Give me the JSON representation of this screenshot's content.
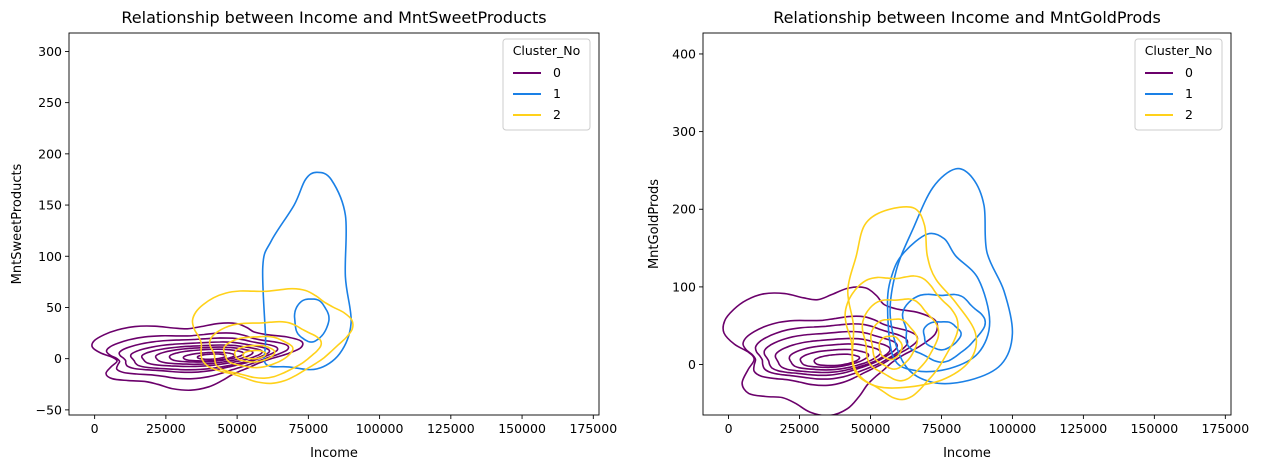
{
  "colors": {
    "cluster_0": "#6b006b",
    "cluster_1": "#1a80e6",
    "cluster_2": "#ffd11a"
  },
  "chart_data": [
    {
      "type": "kde-contour",
      "title": "Relationship between Income and MntSweetProducts",
      "xlabel": "Income",
      "ylabel": "MntSweetProducts",
      "xlim": [
        -9000,
        177000
      ],
      "ylim": [
        -55,
        318
      ],
      "xticks": [
        0,
        25000,
        50000,
        75000,
        100000,
        125000,
        150000,
        175000
      ],
      "yticks": [
        -50,
        0,
        50,
        100,
        150,
        200,
        250,
        300
      ],
      "legend": {
        "title": "Cluster_No",
        "placement": "upper-right",
        "entries": [
          "0",
          "1",
          "2"
        ]
      },
      "series": [
        {
          "name": "0",
          "color": "#6b006b",
          "contours": [
            {
              "cx": 33000,
              "cy": 5,
              "rx": 33000,
              "ry": 30,
              "rot": 0.05,
              "wob": 0.25
            },
            {
              "cx": 34000,
              "cy": 4,
              "rx": 30000,
              "ry": 21,
              "rot": 0.05,
              "wob": 0.16
            },
            {
              "cx": 35000,
              "cy": 4,
              "rx": 27000,
              "ry": 16,
              "rot": 0.05,
              "wob": 0.1
            },
            {
              "cx": 36000,
              "cy": 3,
              "rx": 24000,
              "ry": 13,
              "rot": 0.05,
              "wob": 0.07
            },
            {
              "cx": 37000,
              "cy": 3,
              "rx": 21000,
              "ry": 10,
              "rot": 0.05,
              "wob": 0.05
            },
            {
              "cx": 38000,
              "cy": 3,
              "rx": 17000,
              "ry": 8,
              "rot": 0.05,
              "wob": 0.04
            },
            {
              "cx": 39000,
              "cy": 3,
              "rx": 13000,
              "ry": 6,
              "rot": 0.05,
              "wob": 0.03
            },
            {
              "cx": 40000,
              "cy": 2,
              "rx": 9000,
              "ry": 4,
              "rot": 0.05,
              "wob": 0.02
            },
            {
              "cx": 41000,
              "cy": 2,
              "rx": 5000,
              "ry": 2.5,
              "rot": 0.05,
              "wob": 0.02
            }
          ]
        },
        {
          "name": "1",
          "color": "#1a80e6",
          "contours": [
            {
              "points": [
                [
                  60000,
                  -5
                ],
                [
                  60000,
                  20
                ],
                [
                  59000,
                  90
                ],
                [
                  62000,
                  115
                ],
                [
                  70000,
                  150
                ],
                [
                  74000,
                  175
                ],
                [
                  78000,
                  182
                ],
                [
                  83000,
                  175
                ],
                [
                  88000,
                  140
                ],
                [
                  88000,
                  80
                ],
                [
                  90000,
                  35
                ],
                [
                  86000,
                  5
                ],
                [
                  78000,
                  -10
                ],
                [
                  68000,
                  -8
                ]
              ]
            },
            {
              "cx": 76000,
              "cy": 38,
              "rx": 6000,
              "ry": 21,
              "rot": 0,
              "wob": 0.05
            }
          ]
        },
        {
          "name": "2",
          "color": "#ffd11a",
          "contours": [
            {
              "cx": 61000,
              "cy": 25,
              "rx": 27000,
              "ry": 45,
              "rot": 0.05,
              "wob": 0.12
            },
            {
              "cx": 59000,
              "cy": 10,
              "rx": 19000,
              "ry": 27,
              "rot": 0.05,
              "wob": 0.1
            },
            {
              "cx": 57000,
              "cy": 7,
              "rx": 12000,
              "ry": 15,
              "rot": 0.05,
              "wob": 0.06
            },
            {
              "cx": 56000,
              "cy": 5,
              "rx": 7000,
              "ry": 8,
              "rot": 0.05,
              "wob": 0.04
            },
            {
              "cx": 56000,
              "cy": 4,
              "rx": 4000,
              "ry": 4,
              "rot": 0.05,
              "wob": 0.03
            }
          ]
        }
      ]
    },
    {
      "type": "kde-contour",
      "title": "Relationship between Income and MntGoldProds",
      "xlabel": "Income",
      "ylabel": "MntGoldProds",
      "xlim": [
        -9000,
        177000
      ],
      "ylim": [
        -65,
        427
      ],
      "xticks": [
        0,
        25000,
        50000,
        75000,
        100000,
        125000,
        150000,
        175000
      ],
      "yticks": [
        0,
        100,
        200,
        300,
        400
      ],
      "legend": {
        "title": "Cluster_No",
        "placement": "upper-right",
        "entries": [
          "0",
          "1",
          "2"
        ]
      },
      "series": [
        {
          "name": "0",
          "color": "#6b006b",
          "contours": [
            {
              "cx": 33000,
              "cy": 25,
              "rx": 33000,
              "ry": 75,
              "rot": 0.1,
              "wob": 0.28
            },
            {
              "cx": 34000,
              "cy": 20,
              "rx": 29000,
              "ry": 42,
              "rot": 0.08,
              "wob": 0.15
            },
            {
              "cx": 35000,
              "cy": 18,
              "rx": 26000,
              "ry": 34,
              "rot": 0.08,
              "wob": 0.1
            },
            {
              "cx": 35000,
              "cy": 15,
              "rx": 23000,
              "ry": 27,
              "rot": 0.08,
              "wob": 0.08
            },
            {
              "cx": 36000,
              "cy": 12,
              "rx": 20000,
              "ry": 21,
              "rot": 0.08,
              "wob": 0.06
            },
            {
              "cx": 37000,
              "cy": 10,
              "rx": 16000,
              "ry": 16,
              "rot": 0.08,
              "wob": 0.05
            },
            {
              "cx": 37000,
              "cy": 8,
              "rx": 12000,
              "ry": 11,
              "rot": 0.08,
              "wob": 0.04
            },
            {
              "cx": 38000,
              "cy": 6,
              "rx": 8000,
              "ry": 7,
              "rot": 0.08,
              "wob": 0.03
            }
          ]
        },
        {
          "name": "1",
          "color": "#1a80e6",
          "contours": [
            {
              "points": [
                [
                  62000,
                  0
                ],
                [
                  57000,
                  60
                ],
                [
                  59000,
                  120
                ],
                [
                  65000,
                  175
                ],
                [
                  72000,
                  228
                ],
                [
                  80000,
                  252
                ],
                [
                  86000,
                  240
                ],
                [
                  90000,
                  205
                ],
                [
                  91000,
                  145
                ],
                [
                  97000,
                  95
                ],
                [
                  100000,
                  40
                ],
                [
                  96000,
                  0
                ],
                [
                  85000,
                  -20
                ],
                [
                  72000,
                  -23
                ]
              ]
            },
            {
              "points": [
                [
                  58000,
                  10
                ],
                [
                  56000,
                  80
                ],
                [
                  58000,
                  120
                ],
                [
                  62000,
                  145
                ],
                [
                  70000,
                  168
                ],
                [
                  76000,
                  162
                ],
                [
                  80000,
                  140
                ],
                [
                  88000,
                  110
                ],
                [
                  92000,
                  55
                ],
                [
                  88000,
                  15
                ],
                [
                  78000,
                  -5
                ],
                [
                  66000,
                  -8
                ]
              ]
            },
            {
              "cx": 75000,
              "cy": 50,
              "rx": 14000,
              "ry": 43,
              "rot": 0,
              "wob": 0.12
            },
            {
              "cx": 75000,
              "cy": 38,
              "rx": 6500,
              "ry": 18,
              "rot": 0,
              "wob": 0.08
            }
          ]
        },
        {
          "name": "2",
          "color": "#ffd11a",
          "contours": [
            {
              "points": [
                [
                  44000,
                  50
                ],
                [
                  42000,
                  95
                ],
                [
                  45000,
                  140
                ],
                [
                  48000,
                  180
                ],
                [
                  55000,
                  198
                ],
                [
                  65000,
                  202
                ],
                [
                  69000,
                  180
                ],
                [
                  70000,
                  140
                ],
                [
                  73000,
                  110
                ],
                [
                  80000,
                  80
                ],
                [
                  87000,
                  40
                ],
                [
                  85000,
                  5
                ],
                [
                  75000,
                  -20
                ],
                [
                  60000,
                  -30
                ],
                [
                  50000,
                  -25
                ],
                [
                  44000,
                  0
                ]
              ]
            },
            {
              "cx": 60000,
              "cy": 40,
              "rx": 19000,
              "ry": 78,
              "rot": 0.05,
              "wob": 0.12
            },
            {
              "cx": 60000,
              "cy": 35,
              "rx": 13000,
              "ry": 52,
              "rot": 0.05,
              "wob": 0.1
            },
            {
              "cx": 58000,
              "cy": 28,
              "rx": 8000,
              "ry": 32,
              "rot": 0.05,
              "wob": 0.08
            },
            {
              "cx": 57000,
              "cy": 22,
              "rx": 4000,
              "ry": 15,
              "rot": 0.05,
              "wob": 0.05
            }
          ]
        }
      ]
    }
  ]
}
